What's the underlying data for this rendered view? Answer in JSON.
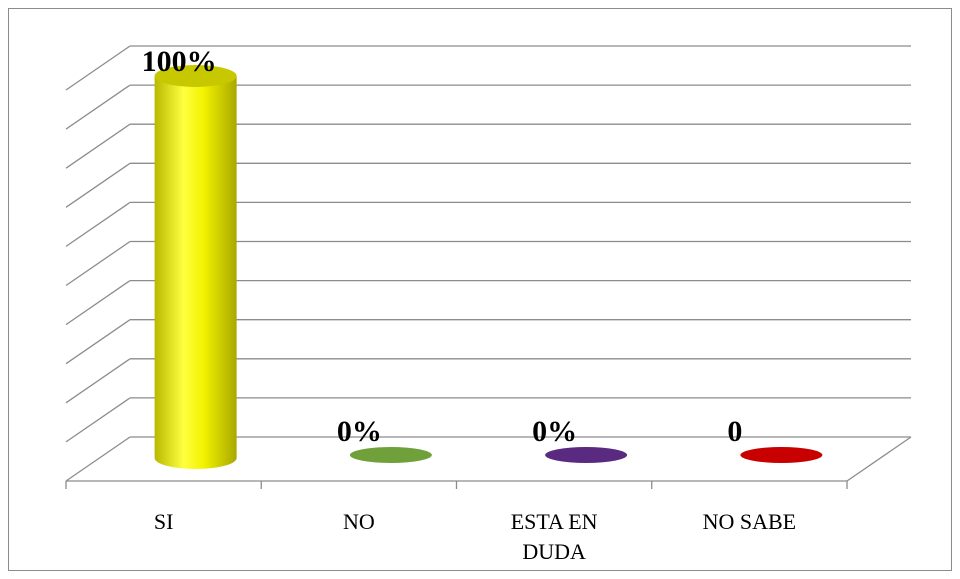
{
  "chart_data": {
    "type": "bar",
    "style": "3d-cylinder",
    "categories": [
      "SI",
      "NO",
      "ESTA EN DUDA",
      "NO SABE"
    ],
    "category_lines": [
      [
        "SI"
      ],
      [
        "NO"
      ],
      [
        "ESTA EN",
        "DUDA"
      ],
      [
        "NO SABE"
      ]
    ],
    "values": [
      100,
      0,
      0,
      0
    ],
    "data_labels": [
      "100%",
      "0%",
      "0%",
      "0"
    ],
    "colors": [
      "#f2f200",
      "#70a03a",
      "#5a2a80",
      "#c80000"
    ],
    "ylim": [
      0,
      100
    ],
    "grid": true,
    "legend": "none",
    "title": "",
    "xlabel": "",
    "ylabel": ""
  }
}
